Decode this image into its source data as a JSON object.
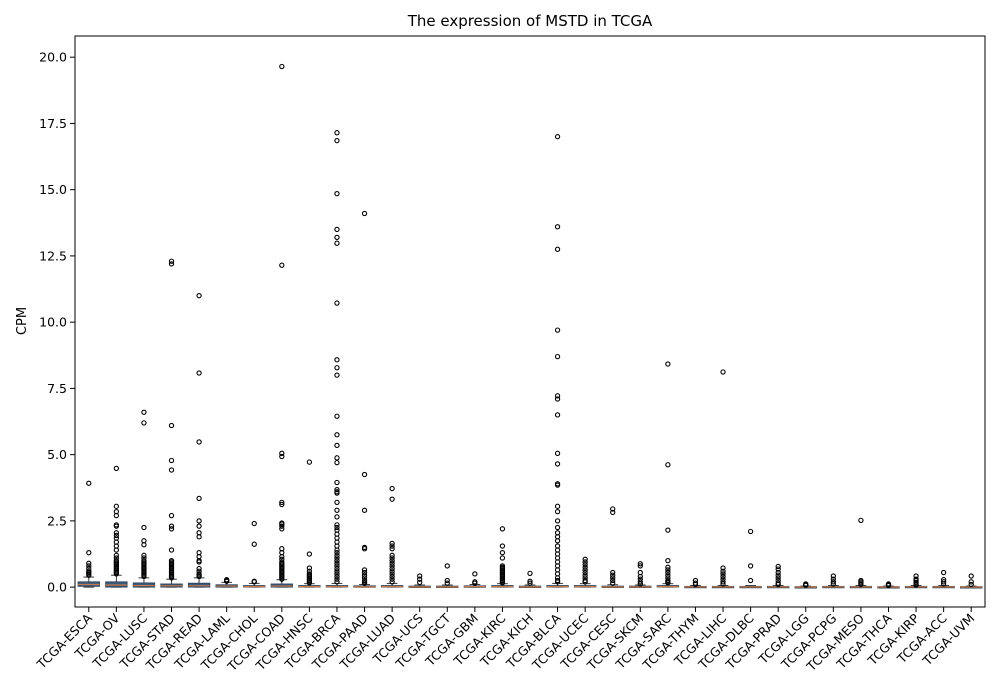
{
  "chart_data": {
    "type": "box",
    "title": "The expression of MSTD in TCGA",
    "xlabel": "",
    "ylabel": "CPM",
    "ylim": [
      -0.75,
      20.8
    ],
    "yticks": [
      0.0,
      2.5,
      5.0,
      7.5,
      10.0,
      12.5,
      15.0,
      17.5,
      20.0
    ],
    "ytick_labels": [
      "0.0",
      "2.5",
      "5.0",
      "7.5",
      "10.0",
      "12.5",
      "15.0",
      "17.5",
      "20.0"
    ],
    "grid": false,
    "box_color": "#3b5b7a",
    "median_color": "#c8784a",
    "categories": [
      "TCGA-ESCA",
      "TCGA-OV",
      "TCGA-LUSC",
      "TCGA-STAD",
      "TCGA-READ",
      "TCGA-LAML",
      "TCGA-CHOL",
      "TCGA-COAD",
      "TCGA-HNSC",
      "TCGA-BRCA",
      "TCGA-PAAD",
      "TCGA-LUAD",
      "TCGA-UCS",
      "TCGA-TGCT",
      "TCGA-GBM",
      "TCGA-KIRC",
      "TCGA-KICH",
      "TCGA-BLCA",
      "TCGA-UCEC",
      "TCGA-CESC",
      "TCGA-SKCM",
      "TCGA-SARC",
      "TCGA-THYM",
      "TCGA-LIHC",
      "TCGA-DLBC",
      "TCGA-PRAD",
      "TCGA-LGG",
      "TCGA-PCPG",
      "TCGA-MESO",
      "TCGA-THCA",
      "TCGA-KIRP",
      "TCGA-ACC",
      "TCGA-UVM"
    ],
    "boxes": [
      {
        "q1": 0.03,
        "median": 0.1,
        "q3": 0.2,
        "whisker_low": 0.0,
        "whisker_high": 0.38,
        "outliers": [
          3.92,
          1.3,
          0.9,
          0.8,
          0.7,
          0.6,
          0.55,
          0.5,
          0.45
        ]
      },
      {
        "q1": 0.0,
        "median": 0.08,
        "q3": 0.2,
        "whisker_low": 0.0,
        "whisker_high": 0.45,
        "outliers": [
          4.48,
          3.05,
          2.85,
          2.7,
          2.35,
          2.3,
          2.05,
          1.95,
          1.85,
          1.7,
          1.55,
          1.4,
          1.2,
          1.1,
          1.0,
          0.95,
          0.9,
          0.85,
          0.8,
          0.75,
          0.7,
          0.65,
          0.6,
          0.55,
          0.5
        ]
      },
      {
        "q1": 0.0,
        "median": 0.06,
        "q3": 0.16,
        "whisker_low": 0.0,
        "whisker_high": 0.35,
        "outliers": [
          6.6,
          6.2,
          2.25,
          1.75,
          1.6,
          1.2,
          1.1,
          1.0,
          0.95,
          0.9,
          0.85,
          0.8,
          0.75,
          0.7,
          0.65,
          0.6,
          0.55,
          0.5,
          0.45,
          0.4
        ]
      },
      {
        "q1": 0.0,
        "median": 0.05,
        "q3": 0.12,
        "whisker_low": 0.0,
        "whisker_high": 0.3,
        "outliers": [
          12.3,
          12.2,
          6.1,
          4.78,
          4.42,
          2.7,
          2.3,
          2.2,
          1.4,
          1.0,
          0.95,
          0.9,
          0.85,
          0.8,
          0.75,
          0.7,
          0.65,
          0.6,
          0.55,
          0.5,
          0.45,
          0.4,
          0.35
        ]
      },
      {
        "q1": 0.0,
        "median": 0.05,
        "q3": 0.15,
        "whisker_low": 0.0,
        "whisker_high": 0.35,
        "outliers": [
          11.0,
          8.08,
          5.48,
          3.35,
          2.5,
          2.3,
          2.05,
          1.9,
          1.3,
          1.15,
          1.0,
          0.95,
          0.7,
          0.6,
          0.5,
          0.45,
          0.4
        ]
      },
      {
        "q1": 0.0,
        "median": 0.04,
        "q3": 0.09,
        "whisker_low": 0.0,
        "whisker_high": 0.18,
        "outliers": [
          0.28,
          0.25,
          0.22
        ]
      },
      {
        "q1": 0.0,
        "median": 0.02,
        "q3": 0.06,
        "whisker_low": 0.0,
        "whisker_high": 0.14,
        "outliers": [
          2.4,
          1.62,
          0.22,
          0.2
        ]
      },
      {
        "q1": 0.0,
        "median": 0.04,
        "q3": 0.12,
        "whisker_low": 0.0,
        "whisker_high": 0.28,
        "outliers": [
          19.65,
          12.15,
          5.05,
          4.93,
          3.2,
          3.12,
          2.42,
          2.38,
          2.3,
          2.2,
          1.45,
          1.3,
          1.15,
          1.05,
          0.95,
          0.9,
          0.85,
          0.8,
          0.75,
          0.7,
          0.65,
          0.6,
          0.55,
          0.5,
          0.45,
          0.4,
          0.35,
          0.3
        ]
      },
      {
        "q1": 0.0,
        "median": 0.02,
        "q3": 0.06,
        "whisker_low": 0.0,
        "whisker_high": 0.13,
        "outliers": [
          4.72,
          1.25,
          0.72,
          0.6,
          0.5,
          0.45,
          0.4,
          0.35,
          0.3,
          0.25,
          0.2,
          0.16
        ]
      },
      {
        "q1": 0.0,
        "median": 0.02,
        "q3": 0.06,
        "whisker_low": 0.0,
        "whisker_high": 0.14,
        "outliers": [
          17.15,
          16.85,
          14.85,
          13.5,
          13.2,
          12.98,
          10.72,
          8.58,
          8.28,
          8.0,
          6.45,
          5.75,
          5.35,
          4.88,
          4.7,
          3.95,
          3.68,
          3.6,
          3.55,
          3.2,
          2.9,
          2.65,
          2.35,
          2.25,
          2.15,
          2.0,
          1.85,
          1.7,
          1.55,
          1.4,
          1.3,
          1.2,
          1.1,
          1.0,
          0.9,
          0.8,
          0.7,
          0.6,
          0.5,
          0.4,
          0.3,
          0.2
        ]
      },
      {
        "q1": 0.0,
        "median": 0.01,
        "q3": 0.05,
        "whisker_low": 0.0,
        "whisker_high": 0.1,
        "outliers": [
          14.1,
          4.25,
          2.9,
          1.5,
          1.45,
          0.65,
          0.55,
          0.45,
          0.35,
          0.25,
          0.2,
          0.15
        ]
      },
      {
        "q1": 0.0,
        "median": 0.02,
        "q3": 0.06,
        "whisker_low": 0.0,
        "whisker_high": 0.14,
        "outliers": [
          3.72,
          3.32,
          1.65,
          1.55,
          1.45,
          1.2,
          1.1,
          1.0,
          0.9,
          0.8,
          0.7,
          0.6,
          0.5,
          0.4,
          0.3,
          0.2
        ]
      },
      {
        "q1": 0.0,
        "median": 0.01,
        "q3": 0.04,
        "whisker_low": 0.0,
        "whisker_high": 0.08,
        "outliers": [
          0.42,
          0.3,
          0.18
        ]
      },
      {
        "q1": 0.0,
        "median": 0.01,
        "q3": 0.04,
        "whisker_low": 0.0,
        "whisker_high": 0.08,
        "outliers": [
          0.8,
          0.25,
          0.15
        ]
      },
      {
        "q1": 0.0,
        "median": 0.02,
        "q3": 0.05,
        "whisker_low": 0.0,
        "whisker_high": 0.1,
        "outliers": [
          0.5,
          0.2,
          0.15
        ]
      },
      {
        "q1": 0.0,
        "median": 0.02,
        "q3": 0.06,
        "whisker_low": 0.0,
        "whisker_high": 0.13,
        "outliers": [
          2.2,
          1.55,
          1.3,
          1.1,
          0.8,
          0.75,
          0.7,
          0.65,
          0.6,
          0.55,
          0.5,
          0.45,
          0.4,
          0.35,
          0.3,
          0.25,
          0.2,
          0.16
        ]
      },
      {
        "q1": 0.0,
        "median": 0.01,
        "q3": 0.04,
        "whisker_low": 0.0,
        "whisker_high": 0.08,
        "outliers": [
          0.52,
          0.22,
          0.15
        ]
      },
      {
        "q1": 0.0,
        "median": 0.02,
        "q3": 0.06,
        "whisker_low": 0.0,
        "whisker_high": 0.14,
        "outliers": [
          17.0,
          13.6,
          12.75,
          9.7,
          8.7,
          7.22,
          7.1,
          6.5,
          5.05,
          4.65,
          3.9,
          3.85,
          3.05,
          2.85,
          2.5,
          2.25,
          2.05,
          1.9,
          1.75,
          1.55,
          1.4,
          1.25,
          1.1,
          0.95,
          0.8,
          0.65,
          0.5,
          0.35,
          0.25,
          0.2
        ]
      },
      {
        "q1": 0.0,
        "median": 0.02,
        "q3": 0.06,
        "whisker_low": 0.0,
        "whisker_high": 0.13,
        "outliers": [
          1.05,
          0.95,
          0.85,
          0.75,
          0.65,
          0.55,
          0.45,
          0.35,
          0.25,
          0.2
        ]
      },
      {
        "q1": 0.0,
        "median": 0.01,
        "q3": 0.04,
        "whisker_low": 0.0,
        "whisker_high": 0.09,
        "outliers": [
          2.95,
          2.82,
          0.55,
          0.45,
          0.35,
          0.25,
          0.15
        ]
      },
      {
        "q1": 0.0,
        "median": 0.01,
        "q3": 0.04,
        "whisker_low": 0.0,
        "whisker_high": 0.08,
        "outliers": [
          0.88,
          0.8,
          0.55,
          0.4,
          0.3,
          0.2,
          0.12
        ]
      },
      {
        "q1": 0.0,
        "median": 0.02,
        "q3": 0.06,
        "whisker_low": 0.0,
        "whisker_high": 0.13,
        "outliers": [
          8.42,
          4.62,
          2.15,
          1.0,
          0.75,
          0.65,
          0.55,
          0.45,
          0.35,
          0.25,
          0.2,
          0.16
        ]
      },
      {
        "q1": 0.0,
        "median": 0.01,
        "q3": 0.03,
        "whisker_low": 0.0,
        "whisker_high": 0.06,
        "outliers": [
          0.25,
          0.15,
          0.1
        ]
      },
      {
        "q1": 0.0,
        "median": 0.01,
        "q3": 0.03,
        "whisker_low": 0.0,
        "whisker_high": 0.06,
        "outliers": [
          8.12,
          0.72,
          0.6,
          0.5,
          0.4,
          0.3,
          0.2,
          0.12
        ]
      },
      {
        "q1": 0.0,
        "median": 0.01,
        "q3": 0.03,
        "whisker_low": 0.0,
        "whisker_high": 0.06,
        "outliers": [
          2.1,
          0.8,
          0.25
        ]
      },
      {
        "q1": 0.0,
        "median": 0.01,
        "q3": 0.03,
        "whisker_low": 0.0,
        "whisker_high": 0.06,
        "outliers": [
          0.78,
          0.68,
          0.55,
          0.45,
          0.35,
          0.25,
          0.15,
          0.1
        ]
      },
      {
        "q1": 0.0,
        "median": 0.005,
        "q3": 0.02,
        "whisker_low": 0.0,
        "whisker_high": 0.04,
        "outliers": [
          0.12,
          0.09,
          0.07
        ]
      },
      {
        "q1": 0.0,
        "median": 0.01,
        "q3": 0.03,
        "whisker_low": 0.0,
        "whisker_high": 0.06,
        "outliers": [
          0.42,
          0.3,
          0.2,
          0.12
        ]
      },
      {
        "q1": 0.0,
        "median": 0.01,
        "q3": 0.03,
        "whisker_low": 0.0,
        "whisker_high": 0.06,
        "outliers": [
          2.52,
          0.25,
          0.2,
          0.15,
          0.1
        ]
      },
      {
        "q1": 0.0,
        "median": 0.005,
        "q3": 0.02,
        "whisker_low": 0.0,
        "whisker_high": 0.04,
        "outliers": [
          0.12,
          0.1,
          0.08,
          0.06
        ]
      },
      {
        "q1": 0.0,
        "median": 0.01,
        "q3": 0.03,
        "whisker_low": 0.0,
        "whisker_high": 0.06,
        "outliers": [
          0.42,
          0.3,
          0.25,
          0.18,
          0.12,
          0.08
        ]
      },
      {
        "q1": 0.0,
        "median": 0.01,
        "q3": 0.03,
        "whisker_low": 0.0,
        "whisker_high": 0.06,
        "outliers": [
          0.55,
          0.28,
          0.2,
          0.12
        ]
      },
      {
        "q1": 0.0,
        "median": 0.005,
        "q3": 0.02,
        "whisker_low": 0.0,
        "whisker_high": 0.04,
        "outliers": [
          0.42,
          0.2,
          0.1
        ]
      }
    ]
  }
}
